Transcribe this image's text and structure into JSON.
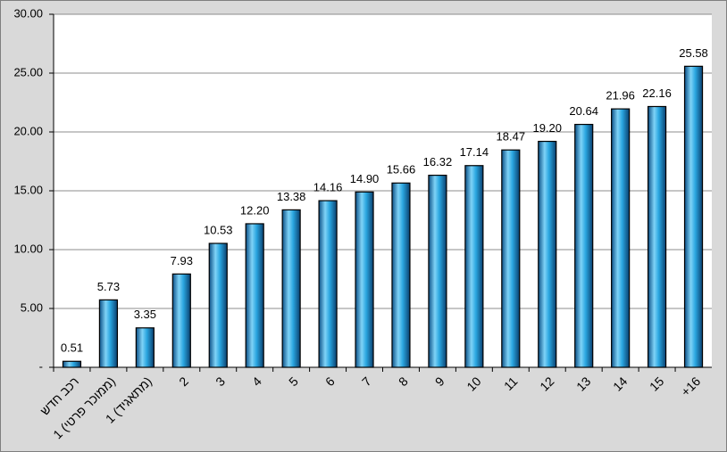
{
  "chart_data": {
    "type": "bar",
    "categories": [
      "רכב חדש",
      "1 (ממוכר פרטי)",
      "1 (מתאגיד)",
      "2",
      "3",
      "4",
      "5",
      "6",
      "7",
      "8",
      "9",
      "10",
      "11",
      "12",
      "13",
      "14",
      "15",
      "+16"
    ],
    "values": [
      0.51,
      5.73,
      3.35,
      7.93,
      10.53,
      12.2,
      13.38,
      14.16,
      14.9,
      15.66,
      16.32,
      17.14,
      18.47,
      19.2,
      20.64,
      21.96,
      22.16,
      25.58
    ],
    "value_labels": [
      "0.51",
      "5.73",
      "3.35",
      "7.93",
      "10.53",
      "12.20",
      "13.38",
      "14.16",
      "14.90",
      "15.66",
      "16.32",
      "17.14",
      "18.47",
      "19.20",
      "20.64",
      "21.96",
      "22.16",
      "25.58"
    ],
    "color": "#1f9ad6",
    "ylim": [
      0,
      30
    ],
    "yticks": [
      {
        "value": 0,
        "label": "-"
      },
      {
        "value": 5,
        "label": "5.00"
      },
      {
        "value": 10,
        "label": "10.00"
      },
      {
        "value": 15,
        "label": "15.00"
      },
      {
        "value": 20,
        "label": "20.00"
      },
      {
        "value": 25,
        "label": "25.00"
      },
      {
        "value": 30,
        "label": "30.00"
      }
    ],
    "grid": true
  }
}
